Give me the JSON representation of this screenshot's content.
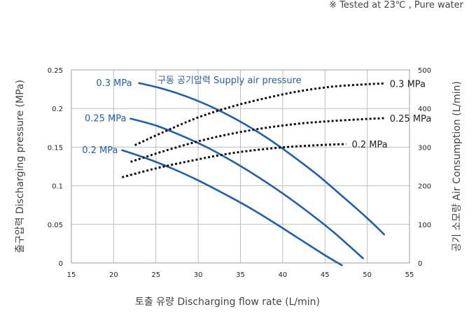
{
  "note": "※  Tested at  23℃ , Pure water",
  "chart_data": {
    "type": "line",
    "xlabel": "토출 유량 Discharging flow rate (L/min)",
    "ylabel_left": "출구압력 Discharging pressure (MPa)",
    "ylabel_right": "공기 소모량 Air Consumption (L/min)",
    "legend_title": "구동 공기압력 Supply air pressure",
    "xlim": [
      15,
      55
    ],
    "ylim_left": [
      0,
      0.25
    ],
    "ylim_right": [
      0,
      500
    ],
    "x_ticks": [
      "15",
      "20",
      "25",
      "30",
      "35",
      "40",
      "45",
      "50",
      "55"
    ],
    "y_left_ticks": [
      "0",
      "0.05",
      "0.1",
      "0.15",
      "0.2",
      "0.25"
    ],
    "y_right_ticks": [
      "0",
      "100",
      "200",
      "300",
      "400",
      "500"
    ],
    "grid": true,
    "series": [
      {
        "name": "0.3 MPa",
        "axis": "left",
        "style": "solid",
        "color": "#1f5fb3",
        "x": [
          23,
          26,
          29,
          32,
          35,
          38,
          41,
          44,
          47,
          50,
          52
        ],
        "y": [
          0.233,
          0.225,
          0.214,
          0.2,
          0.183,
          0.163,
          0.14,
          0.115,
          0.087,
          0.058,
          0.037
        ]
      },
      {
        "name": "0.25 MPa",
        "axis": "left",
        "style": "solid",
        "color": "#1f5fb3",
        "x": [
          22,
          25,
          28,
          31,
          34,
          37,
          40,
          43,
          46,
          49.5
        ],
        "y": [
          0.187,
          0.178,
          0.165,
          0.15,
          0.132,
          0.112,
          0.09,
          0.066,
          0.04,
          0.006
        ]
      },
      {
        "name": "0.2 MPa",
        "axis": "left",
        "style": "solid",
        "color": "#1f5fb3",
        "x": [
          21,
          24,
          27,
          30,
          33,
          36,
          39,
          42,
          45,
          47
        ],
        "y": [
          0.146,
          0.135,
          0.122,
          0.107,
          0.09,
          0.072,
          0.052,
          0.031,
          0.01,
          -0.003
        ]
      },
      {
        "name": "0.3 MPa",
        "axis": "right",
        "style": "dotted",
        "color": "#111111",
        "x": [
          22.5,
          26,
          30,
          34,
          38,
          42,
          46,
          50,
          52
        ],
        "y": [
          305,
          340,
          377,
          405,
          427,
          445,
          457,
          463,
          465
        ]
      },
      {
        "name": "0.25 MPa",
        "axis": "right",
        "style": "dotted",
        "color": "#111111",
        "x": [
          22,
          26,
          30,
          34,
          38,
          42,
          46,
          50,
          52
        ],
        "y": [
          262,
          290,
          315,
          335,
          350,
          361,
          368,
          373,
          375
        ]
      },
      {
        "name": "0.2 MPa",
        "axis": "right",
        "style": "dotted",
        "color": "#111111",
        "x": [
          21,
          25,
          29,
          33,
          37,
          41,
          45,
          47.5
        ],
        "y": [
          222,
          245,
          264,
          281,
          293,
          301,
          306,
          308
        ]
      }
    ]
  }
}
